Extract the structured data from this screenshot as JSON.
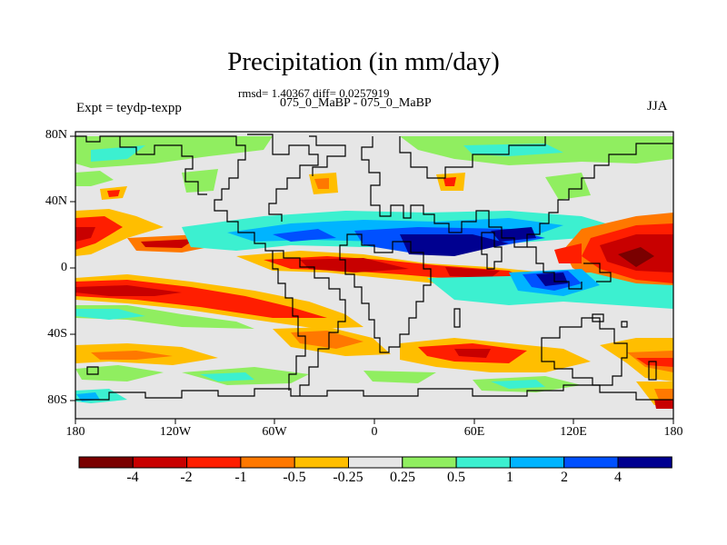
{
  "title": "Precipitation (in mm/day)",
  "stats_line": "rmsd= 1.40367 diff= 0.0257919",
  "comparison": "075_0_MaBP - 075_0_MaBP",
  "experiment": "Expt = teydp-texpp",
  "season": "JJA",
  "lat_labels": [
    "80N",
    "40N",
    "0",
    "40S",
    "80S"
  ],
  "lon_labels": [
    "180",
    "120W",
    "60W",
    "0",
    "60E",
    "120E",
    "180"
  ],
  "colorbar": {
    "colors": [
      "#7a0000",
      "#c80000",
      "#ff1e00",
      "#ff7800",
      "#ffbe00",
      "#e6e6e6",
      "#90ee60",
      "#3cf0d0",
      "#00b4ff",
      "#0050ff",
      "#000090"
    ],
    "labels": [
      "-4",
      "-2",
      "-1",
      "-0.5",
      "-0.25",
      "0.25",
      "0.5",
      "1",
      "2",
      "4"
    ]
  }
}
